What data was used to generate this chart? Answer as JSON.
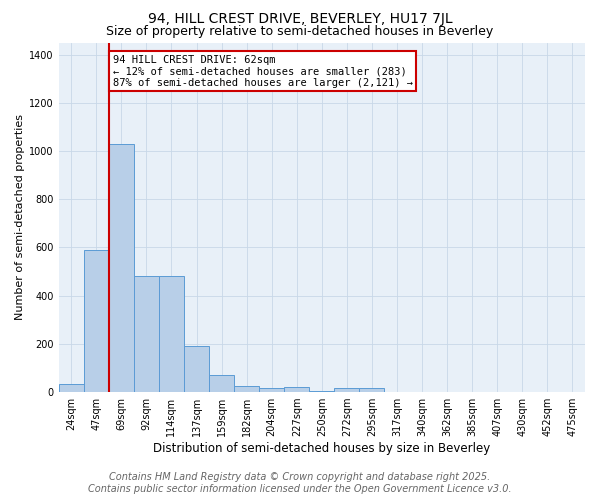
{
  "title": "94, HILL CREST DRIVE, BEVERLEY, HU17 7JL",
  "subtitle": "Size of property relative to semi-detached houses in Beverley",
  "xlabel": "Distribution of semi-detached houses by size in Beverley",
  "ylabel": "Number of semi-detached properties",
  "categories": [
    "24sqm",
    "47sqm",
    "69sqm",
    "92sqm",
    "114sqm",
    "137sqm",
    "159sqm",
    "182sqm",
    "204sqm",
    "227sqm",
    "250sqm",
    "272sqm",
    "295sqm",
    "317sqm",
    "340sqm",
    "362sqm",
    "385sqm",
    "407sqm",
    "430sqm",
    "452sqm",
    "475sqm"
  ],
  "values": [
    35,
    590,
    1030,
    480,
    480,
    190,
    70,
    25,
    15,
    20,
    5,
    15,
    15,
    0,
    0,
    0,
    0,
    0,
    0,
    0,
    0
  ],
  "bar_color": "#b8cfe8",
  "bar_edge_color": "#5b9bd5",
  "red_line_x": 1.5,
  "red_line_color": "#cc0000",
  "annotation_text": "94 HILL CREST DRIVE: 62sqm\n← 12% of semi-detached houses are smaller (283)\n87% of semi-detached houses are larger (2,121) →",
  "annotation_box_color": "#cc0000",
  "ylim": [
    0,
    1450
  ],
  "yticks": [
    0,
    200,
    400,
    600,
    800,
    1000,
    1200,
    1400
  ],
  "grid_color": "#c8d8e8",
  "background_color": "#e8f0f8",
  "footer_line1": "Contains HM Land Registry data © Crown copyright and database right 2025.",
  "footer_line2": "Contains public sector information licensed under the Open Government Licence v3.0.",
  "title_fontsize": 10,
  "subtitle_fontsize": 9,
  "tick_fontsize": 7,
  "ylabel_fontsize": 8,
  "xlabel_fontsize": 8.5,
  "footer_fontsize": 7,
  "annotation_fontsize": 7.5
}
